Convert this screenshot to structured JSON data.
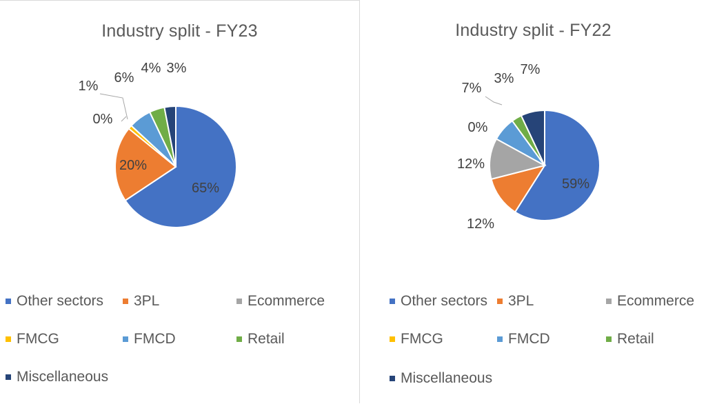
{
  "chart_data": [
    {
      "type": "pie",
      "title": "Industry split - FY23",
      "categories": [
        "Other sectors",
        "3PL",
        "Ecommerce",
        "FMCG",
        "FMCD",
        "Retail",
        "Miscellaneous"
      ],
      "values": [
        65,
        20,
        0,
        1,
        6,
        4,
        3
      ],
      "labels": [
        "65%",
        "20%",
        "0%",
        "1%",
        "6%",
        "4%",
        "3%"
      ],
      "legend_position": "bottom"
    },
    {
      "type": "pie",
      "title": "Industry split - FY22",
      "categories": [
        "Other sectors",
        "3PL",
        "Ecommerce",
        "FMCG",
        "FMCD",
        "Retail",
        "Miscellaneous"
      ],
      "values": [
        59,
        12,
        12,
        0,
        7,
        3,
        7
      ],
      "labels": [
        "59%",
        "12%",
        "12%",
        "0%",
        "7%",
        "3%",
        "7%"
      ],
      "legend_position": "bottom"
    }
  ],
  "colors": {
    "Other sectors": "#4472c4",
    "3PL": "#ed7d31",
    "Ecommerce": "#a5a5a5",
    "FMCG": "#ffc000",
    "FMCD": "#5b9bd5",
    "Retail": "#70ad47",
    "Miscellaneous": "#264478"
  }
}
